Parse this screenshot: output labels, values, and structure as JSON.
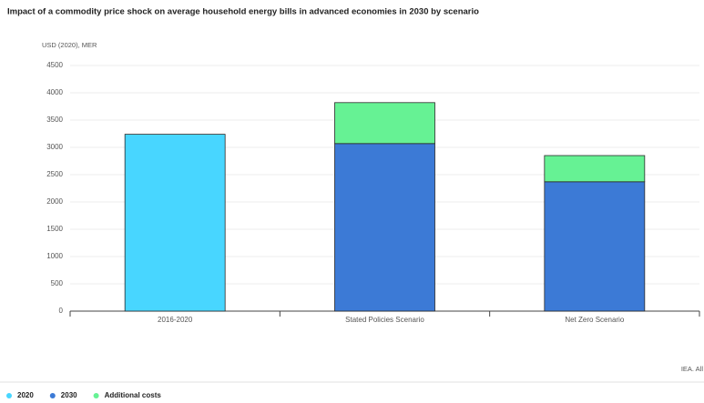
{
  "chart_data": {
    "type": "stacked-bar",
    "title": "Impact of a commodity price shock on average household energy bills in advanced economies in 2030 by scenario",
    "y_label": "USD (2020), MER",
    "categories": [
      "2016-2020",
      "Stated Policies Scenario",
      "Net Zero Scenario"
    ],
    "series": [
      {
        "name": "2020",
        "color": "#48d6ff",
        "values": [
          3240,
          null,
          null
        ]
      },
      {
        "name": "2030",
        "color": "#3c7ad6",
        "values": [
          null,
          3070,
          2370
        ]
      },
      {
        "name": "Additional costs",
        "color": "#66f294",
        "values": [
          null,
          750,
          480
        ]
      }
    ],
    "ylim": [
      0,
      4500
    ],
    "yticks": [
      0,
      500,
      1000,
      1500,
      2000,
      2500,
      3000,
      3500,
      4000,
      4500
    ],
    "grid": true,
    "legend": "bottom-left",
    "source": "IEA. All"
  }
}
